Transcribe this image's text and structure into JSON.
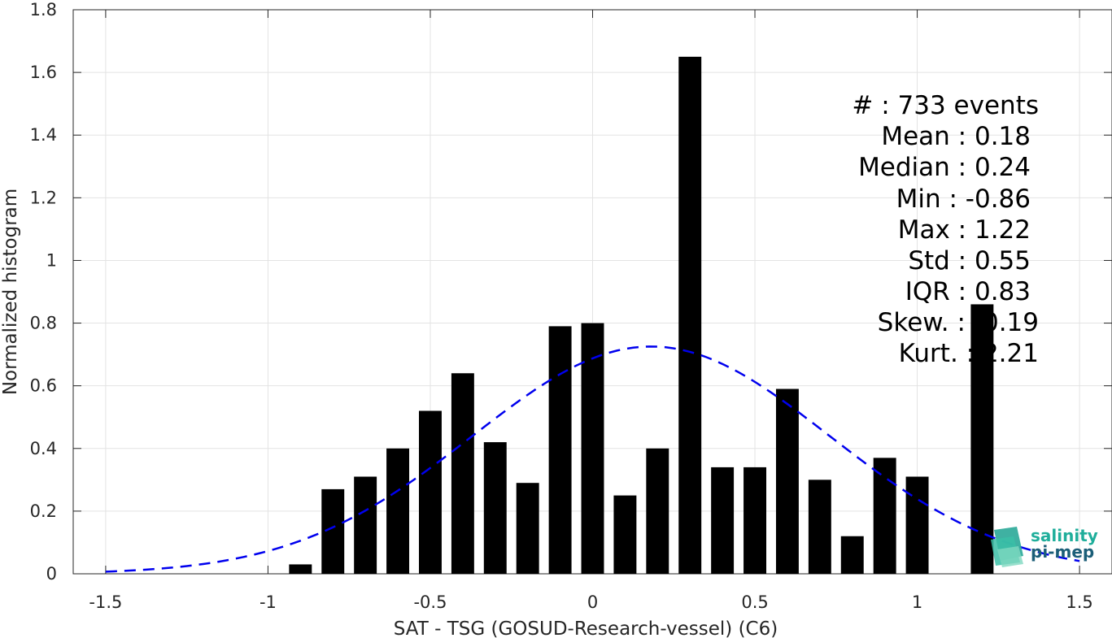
{
  "chart_data": {
    "type": "bar",
    "xlabel": "SAT - TSG (GOSUD-Research-vessel) (C6)",
    "ylabel": "Normalized histogram",
    "xlim": [
      -1.6,
      1.6
    ],
    "ylim": [
      0,
      1.8
    ],
    "xticks": [
      -1.5,
      -1,
      -0.5,
      0,
      0.5,
      1,
      1.5
    ],
    "xtick_labels": [
      "-1.5",
      "-1",
      "-0.5",
      "0",
      "0.5",
      "1",
      "1.5"
    ],
    "yticks": [
      0,
      0.2,
      0.4,
      0.6,
      0.8,
      1,
      1.2,
      1.4,
      1.6,
      1.8
    ],
    "ytick_labels": [
      "0",
      "0.2",
      "0.4",
      "0.6",
      "0.8",
      "1",
      "1.2",
      "1.4",
      "1.6",
      "1.8"
    ],
    "grid": true,
    "bar_width": 0.07,
    "bars": [
      {
        "x": -0.9,
        "y": 0.03
      },
      {
        "x": -0.8,
        "y": 0.27
      },
      {
        "x": -0.7,
        "y": 0.31
      },
      {
        "x": -0.6,
        "y": 0.4
      },
      {
        "x": -0.5,
        "y": 0.52
      },
      {
        "x": -0.4,
        "y": 0.64
      },
      {
        "x": -0.3,
        "y": 0.42
      },
      {
        "x": -0.2,
        "y": 0.29
      },
      {
        "x": -0.1,
        "y": 0.79
      },
      {
        "x": 0.0,
        "y": 0.8
      },
      {
        "x": 0.1,
        "y": 0.25
      },
      {
        "x": 0.2,
        "y": 0.4
      },
      {
        "x": 0.3,
        "y": 1.65
      },
      {
        "x": 0.4,
        "y": 0.34
      },
      {
        "x": 0.5,
        "y": 0.34
      },
      {
        "x": 0.6,
        "y": 0.59
      },
      {
        "x": 0.7,
        "y": 0.3
      },
      {
        "x": 0.8,
        "y": 0.12
      },
      {
        "x": 0.9,
        "y": 0.37
      },
      {
        "x": 1.0,
        "y": 0.31
      },
      {
        "x": 1.2,
        "y": 0.86
      }
    ],
    "fit_curve": {
      "style": "dashed",
      "color": "#0000ee",
      "mean": 0.18,
      "std": 0.55,
      "x_range": [
        -1.5,
        1.5
      ]
    },
    "bar_color": "#000000"
  },
  "stats": {
    "count": "#  : 733 events",
    "mean": "Mean : 0.18",
    "median": "Median : 0.24",
    "min": "Min : -0.86",
    "max": "Max : 1.22",
    "std": "Std : 0.55",
    "iqr": "IQR : 0.83",
    "skew": "Skew. : -0.19",
    "kurt": "Kurt. : 2.21"
  },
  "logo": {
    "line1": "salinity",
    "line2": "pi-mep",
    "color1": "#1fae9b",
    "color2": "#1b5e78"
  }
}
